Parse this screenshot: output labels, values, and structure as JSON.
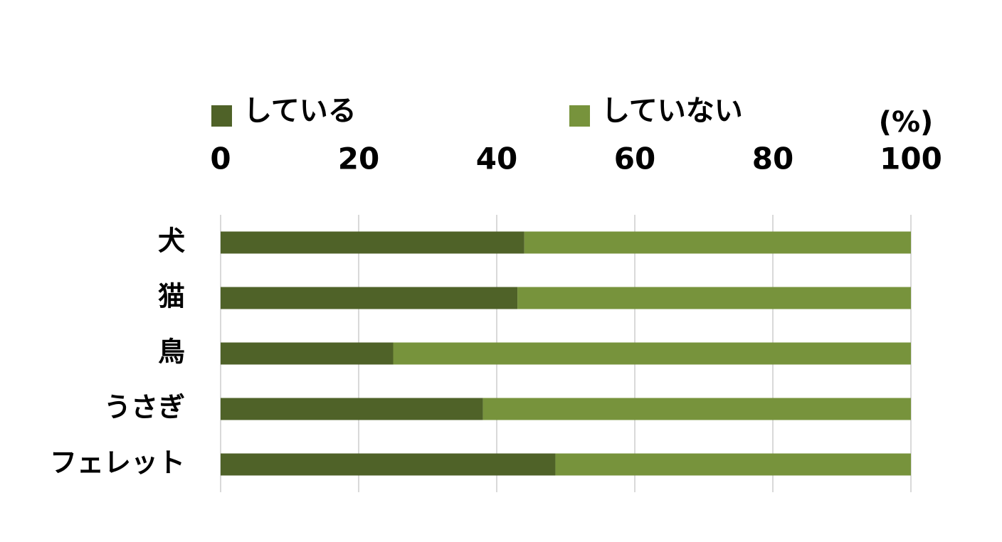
{
  "chart_data": {
    "type": "bar",
    "orientation": "horizontal",
    "stacked": true,
    "categories": [
      "犬",
      "猫",
      "鳥",
      "うさぎ",
      "フェレット"
    ],
    "series": [
      {
        "name": "している",
        "color": "#4f6228",
        "values": [
          44,
          43,
          25,
          38,
          48.5
        ]
      },
      {
        "name": "していない",
        "color": "#77933c",
        "values": [
          56,
          57,
          75,
          62,
          51.5
        ]
      }
    ],
    "xlabel": "(%)",
    "xlim": [
      0,
      100
    ],
    "xticks": [
      0,
      20,
      40,
      60,
      80,
      100
    ],
    "grid": true,
    "legend": "top"
  }
}
